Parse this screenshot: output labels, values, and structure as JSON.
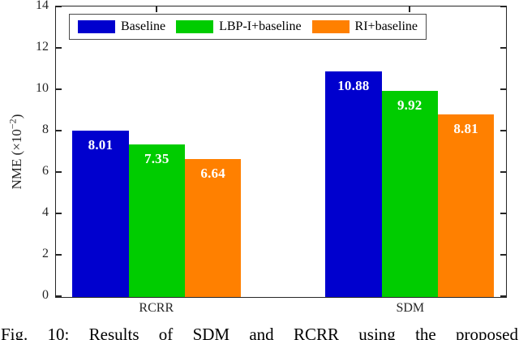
{
  "figure": {
    "caption": "Fig. 10: Results of SDM and RCRR using the proposed"
  },
  "chart_data": {
    "type": "bar",
    "title": "",
    "categories": [
      "RCRR",
      "SDM"
    ],
    "series": [
      {
        "name": "Baseline",
        "color": "#0000CE",
        "values": [
          8.01,
          10.88
        ]
      },
      {
        "name": "LBP-I+baseline",
        "color": "#00CC00",
        "values": [
          7.35,
          9.92
        ]
      },
      {
        "name": "RI+baseline",
        "color": "#FF8000",
        "values": [
          6.64,
          8.81
        ]
      }
    ],
    "ylabel": "NME (×10⁻²)",
    "ylabel_parts": {
      "prefix": "NME (×10",
      "superscript": "−2",
      "suffix": ")"
    },
    "ylim": [
      0,
      14
    ],
    "yticks": [
      0,
      2,
      4,
      6,
      8,
      10,
      12,
      14
    ],
    "grid": false,
    "legend_position": "top-inside",
    "value_label_color": "#FFFFFF",
    "axis_color": "#262626"
  }
}
